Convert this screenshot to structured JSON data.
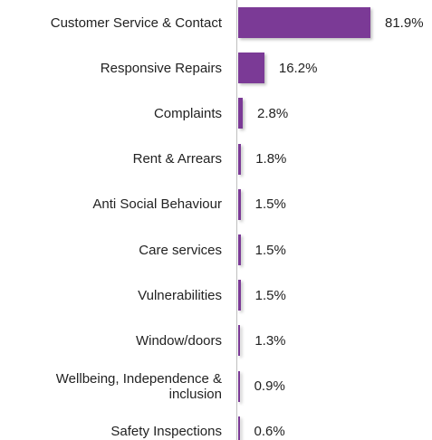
{
  "chart_data": {
    "type": "bar",
    "orientation": "horizontal",
    "color": "#7b3a96",
    "categories": [
      "Customer Service & Contact",
      "Responsive Repairs",
      "Complaints",
      "Rent & Arrears",
      "Anti Social Behaviour",
      "Care services",
      "Vulnerabilities",
      "Window/doors",
      "Wellbeing, Independence & inclusion",
      "Safety Inspections"
    ],
    "values": [
      81.9,
      16.2,
      2.8,
      1.8,
      1.5,
      1.5,
      1.5,
      1.3,
      0.9,
      0.6
    ],
    "value_labels": [
      "81.9%",
      "16.2%",
      "2.8%",
      "1.8%",
      "1.5%",
      "1.5%",
      "1.5%",
      "1.3%",
      "0.9%",
      "0.6%"
    ]
  }
}
